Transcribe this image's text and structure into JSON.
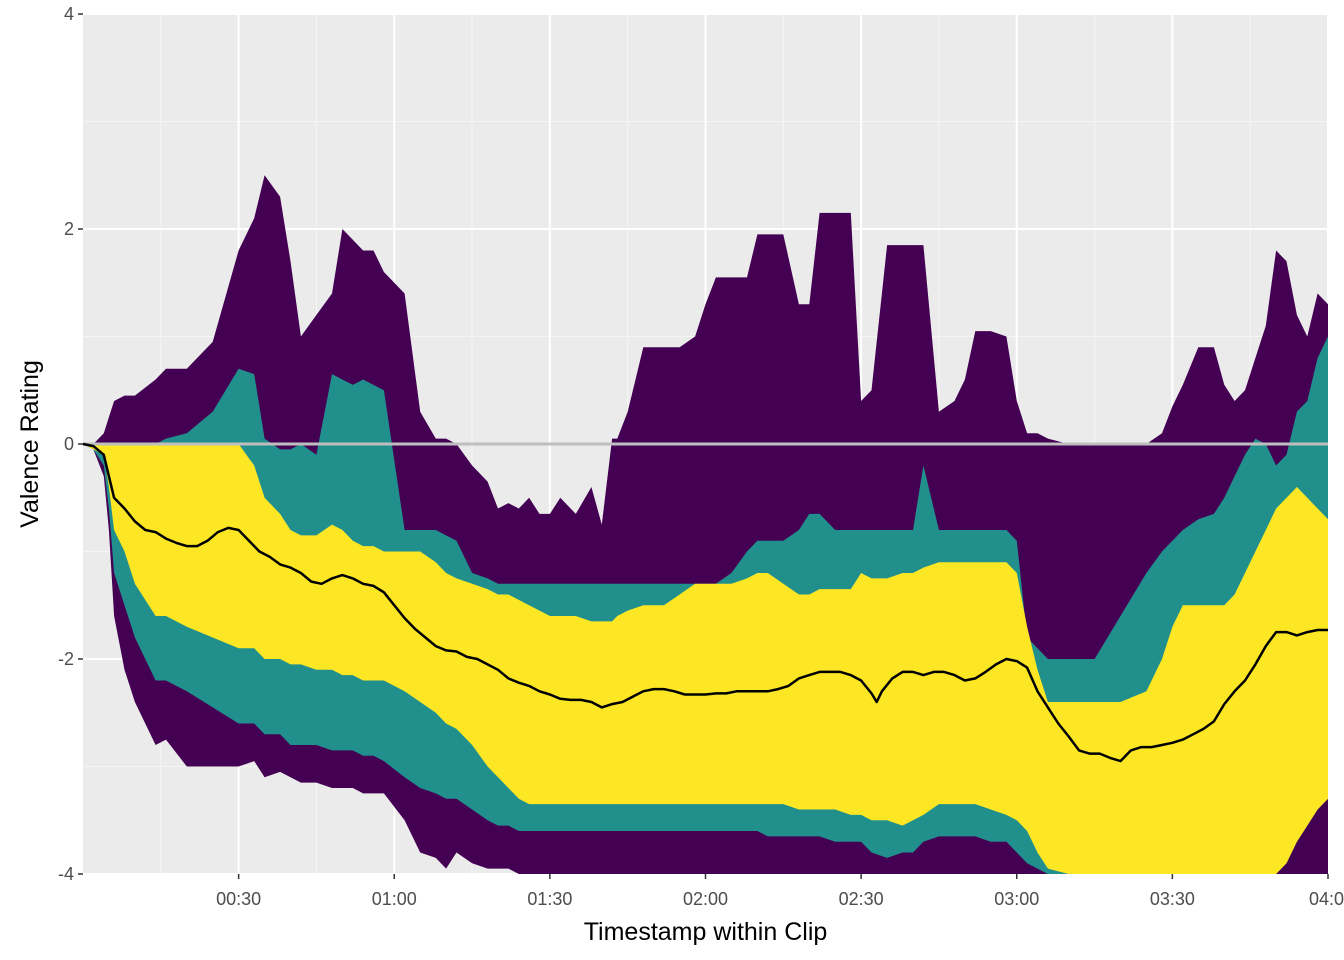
{
  "chart_data": {
    "type": "area",
    "xlabel": "Timestamp within Clip",
    "ylabel": "Valence Rating",
    "x_unit": "seconds",
    "xlim": [
      0,
      240
    ],
    "ylim": [
      -4,
      4
    ],
    "x_ticks": [
      {
        "value": 30,
        "label": "00:30"
      },
      {
        "value": 60,
        "label": "01:00"
      },
      {
        "value": 90,
        "label": "01:30"
      },
      {
        "value": 120,
        "label": "02:00"
      },
      {
        "value": 150,
        "label": "02:30"
      },
      {
        "value": 180,
        "label": "03:00"
      },
      {
        "value": 210,
        "label": "03:30"
      },
      {
        "value": 240,
        "label": "04:0"
      }
    ],
    "y_ticks": [
      {
        "value": 4,
        "label": "4"
      },
      {
        "value": 2,
        "label": "2"
      },
      {
        "value": 0,
        "label": "0"
      },
      {
        "value": -2,
        "label": "-2"
      },
      {
        "value": -4,
        "label": "-4"
      }
    ],
    "grid": true,
    "background_color": "#ebebeb",
    "reference_line": {
      "y": 0,
      "color": "#bebebe"
    },
    "bands": [
      {
        "color": "#440154",
        "x": [
          0,
          2,
          4,
          5,
          6,
          8,
          10,
          14,
          16,
          20,
          25,
          30,
          33,
          35,
          38,
          40,
          42,
          45,
          48,
          50,
          52,
          54,
          56,
          58,
          62,
          65,
          68,
          70,
          72,
          75,
          78,
          80,
          82,
          84,
          86,
          88,
          90,
          92,
          95,
          98,
          100,
          102,
          103,
          105,
          108,
          110,
          112,
          115,
          118,
          120,
          122,
          125,
          128,
          130,
          132,
          135,
          138,
          140,
          142,
          145,
          148,
          150,
          152,
          155,
          158,
          160,
          162,
          165,
          168,
          170,
          172,
          175,
          178,
          180,
          182,
          184,
          186,
          190,
          195,
          200,
          205,
          208,
          210,
          212,
          215,
          218,
          220,
          222,
          224,
          226,
          228,
          230,
          232,
          234,
          236,
          238,
          240
        ],
        "upper": [
          0,
          0,
          0.1,
          0.25,
          0.4,
          0.45,
          0.45,
          0.6,
          0.7,
          0.7,
          0.95,
          1.8,
          2.1,
          2.5,
          2.3,
          1.7,
          1.0,
          1.2,
          1.4,
          2.0,
          1.9,
          1.8,
          1.8,
          1.6,
          1.4,
          0.3,
          0.05,
          0.05,
          0,
          -0.2,
          -0.35,
          -0.6,
          -0.55,
          -0.6,
          -0.5,
          -0.65,
          -0.65,
          -0.5,
          -0.65,
          -0.4,
          -0.75,
          0.05,
          0.05,
          0.3,
          0.9,
          0.9,
          0.9,
          0.9,
          1.0,
          1.3,
          1.55,
          1.55,
          1.55,
          1.95,
          1.95,
          1.95,
          1.3,
          1.3,
          2.15,
          2.15,
          2.15,
          0.4,
          0.5,
          1.85,
          1.85,
          1.85,
          1.85,
          0.3,
          0.4,
          0.6,
          1.05,
          1.05,
          1.0,
          0.4,
          0.1,
          0.1,
          0.05,
          0,
          0,
          0,
          0,
          0.1,
          0.35,
          0.55,
          0.9,
          0.9,
          0.55,
          0.4,
          0.5,
          0.8,
          1.1,
          1.8,
          1.7,
          1.2,
          1.0,
          1.4,
          1.3
        ],
        "lower": [
          0,
          -0.05,
          -0.3,
          -0.8,
          -1.6,
          -2.1,
          -2.4,
          -2.8,
          -2.75,
          -3.0,
          -3.0,
          -3.0,
          -2.95,
          -3.1,
          -3.05,
          -3.1,
          -3.15,
          -3.15,
          -3.2,
          -3.2,
          -3.2,
          -3.25,
          -3.25,
          -3.25,
          -3.5,
          -3.8,
          -3.85,
          -3.95,
          -3.8,
          -3.9,
          -3.95,
          -3.95,
          -3.95,
          -4.0,
          -4.0,
          -4.0,
          -4.0,
          -4.0,
          -4.0,
          -4.0,
          -4.0,
          -4.0,
          -4.0,
          -4.0,
          -4.0,
          -4.0,
          -4.0,
          -4.0,
          -4.0,
          -4.0,
          -4.0,
          -4.0,
          -4.0,
          -4.0,
          -4.0,
          -4.0,
          -4.0,
          -4.0,
          -4.0,
          -4.0,
          -4.0,
          -4.0,
          -4.0,
          -4.0,
          -4.0,
          -4.0,
          -4.0,
          -4.0,
          -4.0,
          -4.0,
          -4.0,
          -4.0,
          -4.0,
          -4.0,
          -4.0,
          -4.0,
          -4.0,
          -4.0,
          -4.0,
          -4.0,
          -4.0,
          -4.0,
          -4.0,
          -4.0,
          -4.0,
          -4.0,
          -4.0,
          -4.0,
          -4.0,
          -4.0,
          -4.0,
          -4.0,
          -4.0,
          -4.0,
          -4.0,
          -4.0,
          -4.0
        ]
      },
      {
        "color": "#21908c",
        "x": [
          0,
          2,
          4,
          5,
          6,
          8,
          10,
          14,
          16,
          20,
          25,
          30,
          33,
          35,
          38,
          40,
          42,
          45,
          48,
          50,
          52,
          54,
          56,
          58,
          62,
          65,
          68,
          70,
          72,
          75,
          78,
          80,
          82,
          84,
          86,
          88,
          90,
          92,
          95,
          98,
          100,
          102,
          103,
          105,
          108,
          110,
          112,
          115,
          118,
          120,
          122,
          125,
          128,
          130,
          132,
          135,
          138,
          140,
          142,
          145,
          148,
          150,
          152,
          155,
          158,
          160,
          162,
          165,
          168,
          170,
          172,
          175,
          178,
          180,
          182,
          184,
          186,
          190,
          195,
          200,
          205,
          208,
          210,
          212,
          215,
          218,
          220,
          222,
          224,
          226,
          228,
          230,
          232,
          234,
          236,
          238,
          240
        ],
        "upper": [
          0,
          0,
          0,
          0,
          0,
          0,
          0,
          0,
          0.05,
          0.1,
          0.3,
          0.7,
          0.65,
          0.05,
          -0.05,
          -0.05,
          0,
          -0.1,
          0.65,
          0.6,
          0.55,
          0.6,
          0.55,
          0.5,
          -0.8,
          -0.8,
          -0.8,
          -0.85,
          -0.9,
          -1.2,
          -1.25,
          -1.3,
          -1.3,
          -1.3,
          -1.3,
          -1.3,
          -1.3,
          -1.3,
          -1.3,
          -1.3,
          -1.3,
          -1.3,
          -1.3,
          -1.3,
          -1.3,
          -1.3,
          -1.3,
          -1.3,
          -1.3,
          -1.3,
          -1.3,
          -1.2,
          -1.0,
          -0.9,
          -0.9,
          -0.9,
          -0.8,
          -0.65,
          -0.65,
          -0.8,
          -0.8,
          -0.8,
          -0.8,
          -0.8,
          -0.8,
          -0.8,
          -0.2,
          -0.8,
          -0.8,
          -0.8,
          -0.8,
          -0.8,
          -0.8,
          -0.9,
          -1.8,
          -1.9,
          -2.0,
          -2.0,
          -2.0,
          -1.6,
          -1.2,
          -1.0,
          -0.9,
          -0.8,
          -0.7,
          -0.65,
          -0.5,
          -0.3,
          -0.1,
          0.05,
          0,
          -0.2,
          -0.1,
          0.3,
          0.4,
          0.8,
          1.0
        ],
        "lower": [
          0,
          -0.05,
          -0.2,
          -0.6,
          -1.2,
          -1.5,
          -1.8,
          -2.2,
          -2.2,
          -2.3,
          -2.45,
          -2.6,
          -2.6,
          -2.7,
          -2.7,
          -2.8,
          -2.8,
          -2.8,
          -2.85,
          -2.85,
          -2.85,
          -2.9,
          -2.9,
          -2.95,
          -3.1,
          -3.2,
          -3.25,
          -3.3,
          -3.3,
          -3.4,
          -3.5,
          -3.55,
          -3.55,
          -3.6,
          -3.6,
          -3.6,
          -3.6,
          -3.6,
          -3.6,
          -3.6,
          -3.6,
          -3.6,
          -3.6,
          -3.6,
          -3.6,
          -3.6,
          -3.6,
          -3.6,
          -3.6,
          -3.6,
          -3.6,
          -3.6,
          -3.6,
          -3.6,
          -3.65,
          -3.65,
          -3.65,
          -3.65,
          -3.65,
          -3.7,
          -3.7,
          -3.7,
          -3.8,
          -3.85,
          -3.8,
          -3.8,
          -3.7,
          -3.65,
          -3.65,
          -3.65,
          -3.65,
          -3.7,
          -3.7,
          -3.8,
          -3.9,
          -3.95,
          -4.0,
          -4.0,
          -4.0,
          -4.0,
          -4.0,
          -4.0,
          -4.0,
          -4.0,
          -4.0,
          -4.0,
          -4.0,
          -4.0,
          -4.0,
          -4.0,
          -4.0,
          -4.0,
          -3.9,
          -3.7,
          -3.55,
          -3.4,
          -3.3
        ]
      },
      {
        "color": "#fde725",
        "x": [
          0,
          2,
          4,
          5,
          6,
          8,
          10,
          14,
          16,
          20,
          25,
          30,
          33,
          35,
          38,
          40,
          42,
          45,
          48,
          50,
          52,
          54,
          56,
          58,
          62,
          65,
          68,
          70,
          72,
          75,
          78,
          80,
          82,
          84,
          86,
          88,
          90,
          92,
          95,
          98,
          100,
          102,
          103,
          105,
          108,
          110,
          112,
          115,
          118,
          120,
          122,
          125,
          128,
          130,
          132,
          135,
          138,
          140,
          142,
          145,
          148,
          150,
          152,
          155,
          158,
          160,
          162,
          165,
          168,
          170,
          172,
          175,
          178,
          180,
          182,
          184,
          186,
          190,
          195,
          200,
          205,
          208,
          210,
          212,
          215,
          218,
          220,
          222,
          224,
          226,
          228,
          230,
          232,
          234,
          236,
          238,
          240
        ],
        "upper": [
          0,
          0,
          0,
          0,
          0,
          0,
          0,
          0,
          0,
          0,
          0,
          0,
          -0.2,
          -0.5,
          -0.65,
          -0.8,
          -0.85,
          -0.85,
          -0.75,
          -0.8,
          -0.9,
          -0.95,
          -0.95,
          -1.0,
          -1.0,
          -1.0,
          -1.1,
          -1.2,
          -1.25,
          -1.3,
          -1.35,
          -1.4,
          -1.4,
          -1.45,
          -1.5,
          -1.55,
          -1.6,
          -1.6,
          -1.6,
          -1.65,
          -1.65,
          -1.65,
          -1.6,
          -1.55,
          -1.5,
          -1.5,
          -1.5,
          -1.4,
          -1.3,
          -1.3,
          -1.3,
          -1.3,
          -1.25,
          -1.2,
          -1.2,
          -1.3,
          -1.4,
          -1.4,
          -1.35,
          -1.35,
          -1.35,
          -1.2,
          -1.25,
          -1.25,
          -1.2,
          -1.2,
          -1.15,
          -1.1,
          -1.1,
          -1.1,
          -1.1,
          -1.1,
          -1.1,
          -1.2,
          -1.7,
          -2.1,
          -2.4,
          -2.4,
          -2.4,
          -2.4,
          -2.3,
          -2.0,
          -1.7,
          -1.5,
          -1.5,
          -1.5,
          -1.5,
          -1.4,
          -1.2,
          -1.0,
          -0.8,
          -0.6,
          -0.5,
          -0.4,
          -0.5,
          -0.6,
          -0.7
        ],
        "lower": [
          0,
          -0.05,
          -0.1,
          -0.4,
          -0.8,
          -1.0,
          -1.3,
          -1.6,
          -1.6,
          -1.7,
          -1.8,
          -1.9,
          -1.9,
          -2.0,
          -2.0,
          -2.05,
          -2.05,
          -2.1,
          -2.1,
          -2.15,
          -2.15,
          -2.2,
          -2.2,
          -2.2,
          -2.3,
          -2.4,
          -2.5,
          -2.6,
          -2.65,
          -2.8,
          -3.0,
          -3.1,
          -3.2,
          -3.3,
          -3.35,
          -3.35,
          -3.35,
          -3.35,
          -3.35,
          -3.35,
          -3.35,
          -3.35,
          -3.35,
          -3.35,
          -3.35,
          -3.35,
          -3.35,
          -3.35,
          -3.35,
          -3.35,
          -3.35,
          -3.35,
          -3.35,
          -3.35,
          -3.35,
          -3.35,
          -3.4,
          -3.4,
          -3.4,
          -3.4,
          -3.45,
          -3.45,
          -3.5,
          -3.5,
          -3.55,
          -3.5,
          -3.45,
          -3.35,
          -3.35,
          -3.35,
          -3.35,
          -3.4,
          -3.45,
          -3.5,
          -3.6,
          -3.8,
          -3.95,
          -4.0,
          -4.0,
          -4.0,
          -4.0,
          -4.0,
          -4.0,
          -4.0,
          -4.0,
          -4.0,
          -4.0,
          -4.0,
          -4.0,
          -4.0,
          -4.0,
          -4.0,
          -3.9,
          -3.7,
          -3.55,
          -3.4,
          -3.3
        ]
      }
    ],
    "mean_line": {
      "color": "#000000",
      "x": [
        0,
        2,
        4,
        5,
        6,
        8,
        10,
        12,
        14,
        16,
        18,
        20,
        22,
        24,
        26,
        28,
        30,
        32,
        34,
        36,
        38,
        40,
        42,
        44,
        46,
        48,
        50,
        52,
        54,
        56,
        58,
        60,
        62,
        64,
        66,
        68,
        70,
        72,
        74,
        76,
        78,
        80,
        82,
        84,
        86,
        88,
        90,
        92,
        94,
        96,
        98,
        100,
        102,
        104,
        106,
        108,
        110,
        112,
        114,
        116,
        118,
        120,
        122,
        124,
        126,
        128,
        130,
        132,
        134,
        136,
        138,
        140,
        142,
        144,
        146,
        148,
        150,
        152,
        153,
        154,
        156,
        158,
        160,
        162,
        164,
        166,
        168,
        170,
        172,
        174,
        176,
        178,
        180,
        182,
        184,
        186,
        188,
        190,
        192,
        194,
        196,
        198,
        200,
        202,
        204,
        206,
        208,
        210,
        212,
        214,
        216,
        218,
        220,
        222,
        224,
        226,
        228,
        230,
        232,
        234,
        236,
        238,
        240
      ],
      "y": [
        0,
        -0.02,
        -0.1,
        -0.3,
        -0.5,
        -0.6,
        -0.72,
        -0.8,
        -0.82,
        -0.88,
        -0.92,
        -0.95,
        -0.95,
        -0.9,
        -0.82,
        -0.78,
        -0.8,
        -0.9,
        -1.0,
        -1.05,
        -1.12,
        -1.15,
        -1.2,
        -1.28,
        -1.3,
        -1.25,
        -1.22,
        -1.25,
        -1.3,
        -1.32,
        -1.38,
        -1.5,
        -1.62,
        -1.72,
        -1.8,
        -1.88,
        -1.92,
        -1.93,
        -1.98,
        -2.0,
        -2.05,
        -2.1,
        -2.18,
        -2.22,
        -2.25,
        -2.3,
        -2.33,
        -2.37,
        -2.38,
        -2.38,
        -2.4,
        -2.45,
        -2.42,
        -2.4,
        -2.35,
        -2.3,
        -2.28,
        -2.28,
        -2.3,
        -2.33,
        -2.33,
        -2.33,
        -2.32,
        -2.32,
        -2.3,
        -2.3,
        -2.3,
        -2.3,
        -2.28,
        -2.25,
        -2.18,
        -2.15,
        -2.12,
        -2.12,
        -2.12,
        -2.15,
        -2.2,
        -2.32,
        -2.4,
        -2.3,
        -2.18,
        -2.12,
        -2.12,
        -2.15,
        -2.12,
        -2.12,
        -2.15,
        -2.2,
        -2.18,
        -2.12,
        -2.05,
        -2.0,
        -2.02,
        -2.08,
        -2.3,
        -2.45,
        -2.6,
        -2.72,
        -2.85,
        -2.88,
        -2.88,
        -2.92,
        -2.95,
        -2.85,
        -2.82,
        -2.82,
        -2.8,
        -2.78,
        -2.75,
        -2.7,
        -2.65,
        -2.58,
        -2.42,
        -2.3,
        -2.2,
        -2.05,
        -1.88,
        -1.75,
        -1.75,
        -1.78,
        -1.75,
        -1.73,
        -1.73
      ]
    }
  }
}
